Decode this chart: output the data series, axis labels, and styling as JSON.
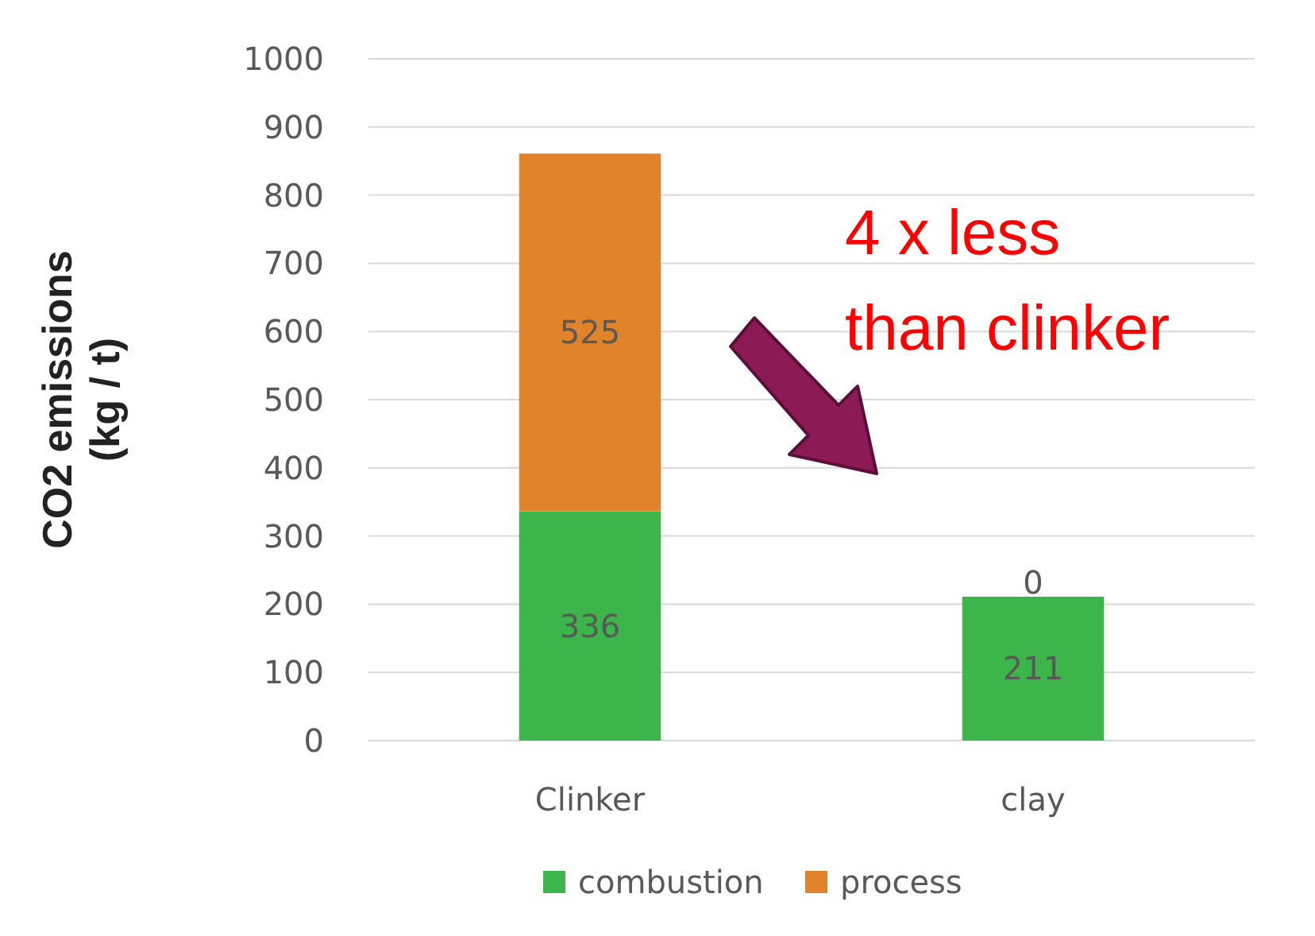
{
  "chart_data": {
    "type": "bar",
    "stacked": true,
    "ylabel": "CO2 emissions\n(kg / t)",
    "categories": [
      "Clinker",
      "clay"
    ],
    "series": [
      {
        "name": "combustion",
        "color": "#3cb64a",
        "values": [
          336,
          211
        ]
      },
      {
        "name": "process",
        "color": "#e0832a",
        "values": [
          525,
          0
        ]
      }
    ],
    "ylim": [
      0,
      1000
    ],
    "yticks": [
      0,
      100,
      200,
      300,
      400,
      500,
      600,
      700,
      800,
      900,
      1000
    ],
    "grid": "y",
    "legend": "bottom",
    "data_labels": true,
    "annotations": [
      "4 x less\nthan clinker"
    ]
  }
}
